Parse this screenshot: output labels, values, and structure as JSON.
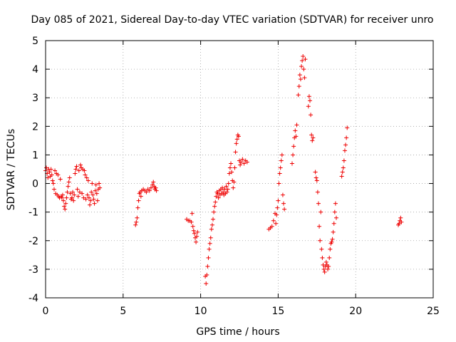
{
  "chart_data": {
    "type": "scatter",
    "title": "Day 085 of 2021, Sidereal Day-to-day VTEC variation (SDTVAR) for receiver unro",
    "xlabel": "GPS time / hours",
    "ylabel": "SDTVAR / TECUs",
    "xlim": [
      0,
      25
    ],
    "ylim": [
      -4,
      5
    ],
    "xticks": [
      "0",
      "5",
      "10",
      "15",
      "20",
      "25"
    ],
    "yticks": [
      "-4",
      "-3",
      "-2",
      "-1",
      "0",
      "1",
      "2",
      "3",
      "4",
      "5"
    ],
    "grid": true,
    "marker": "+",
    "color": "#ee0000",
    "series": [
      {
        "name": "SDTVAR",
        "points": [
          [
            0.0,
            0.45
          ],
          [
            0.05,
            0.55
          ],
          [
            0.1,
            0.35
          ],
          [
            0.15,
            0.2
          ],
          [
            0.2,
            0.5
          ],
          [
            0.25,
            0.4
          ],
          [
            0.3,
            0.25
          ],
          [
            0.35,
            0.5
          ],
          [
            0.4,
            0.3
          ],
          [
            0.45,
            0.1
          ],
          [
            0.5,
            0.0
          ],
          [
            0.55,
            -0.2
          ],
          [
            0.6,
            0.45
          ],
          [
            0.65,
            -0.35
          ],
          [
            0.7,
            0.35
          ],
          [
            0.75,
            -0.4
          ],
          [
            0.8,
            0.3
          ],
          [
            0.85,
            -0.45
          ],
          [
            0.9,
            -0.5
          ],
          [
            0.95,
            0.15
          ],
          [
            1.0,
            -0.45
          ],
          [
            1.05,
            -0.5
          ],
          [
            1.1,
            -0.4
          ],
          [
            1.15,
            -0.6
          ],
          [
            1.2,
            -0.8
          ],
          [
            1.25,
            -0.9
          ],
          [
            1.3,
            -0.7
          ],
          [
            1.35,
            -0.5
          ],
          [
            1.4,
            -0.3
          ],
          [
            1.45,
            -0.1
          ],
          [
            1.5,
            0.05
          ],
          [
            1.55,
            0.2
          ],
          [
            1.6,
            -0.35
          ],
          [
            1.65,
            -0.55
          ],
          [
            1.7,
            -0.5
          ],
          [
            1.75,
            -0.3
          ],
          [
            1.8,
            -0.6
          ],
          [
            1.85,
            -0.4
          ],
          [
            1.9,
            0.35
          ],
          [
            1.95,
            0.5
          ],
          [
            2.0,
            0.6
          ],
          [
            2.05,
            -0.2
          ],
          [
            2.1,
            -0.45
          ],
          [
            2.15,
            0.45
          ],
          [
            2.2,
            -0.3
          ],
          [
            2.25,
            0.65
          ],
          [
            2.3,
            0.55
          ],
          [
            2.35,
            -0.35
          ],
          [
            2.4,
            0.5
          ],
          [
            2.45,
            -0.5
          ],
          [
            2.5,
            0.45
          ],
          [
            2.55,
            0.3
          ],
          [
            2.6,
            -0.55
          ],
          [
            2.65,
            0.2
          ],
          [
            2.7,
            -0.4
          ],
          [
            2.75,
            0.1
          ],
          [
            2.8,
            -0.5
          ],
          [
            2.85,
            -0.75
          ],
          [
            2.9,
            -0.6
          ],
          [
            2.95,
            -0.3
          ],
          [
            3.0,
            0.0
          ],
          [
            3.05,
            -0.4
          ],
          [
            3.1,
            -0.55
          ],
          [
            3.15,
            -0.7
          ],
          [
            3.2,
            -0.25
          ],
          [
            3.25,
            -0.05
          ],
          [
            3.3,
            -0.35
          ],
          [
            3.35,
            -0.6
          ],
          [
            3.4,
            -0.2
          ],
          [
            3.45,
            0.0
          ],
          [
            3.5,
            -0.15
          ],
          [
            5.8,
            -1.45
          ],
          [
            5.85,
            -1.35
          ],
          [
            5.9,
            -1.2
          ],
          [
            5.95,
            -0.85
          ],
          [
            6.0,
            -0.6
          ],
          [
            6.05,
            -0.35
          ],
          [
            6.1,
            -0.3
          ],
          [
            6.15,
            -0.45
          ],
          [
            6.2,
            -0.25
          ],
          [
            6.3,
            -0.2
          ],
          [
            6.4,
            -0.25
          ],
          [
            6.5,
            -0.3
          ],
          [
            6.6,
            -0.2
          ],
          [
            6.7,
            -0.25
          ],
          [
            6.8,
            -0.15
          ],
          [
            6.9,
            -0.05
          ],
          [
            6.95,
            0.05
          ],
          [
            7.0,
            -0.1
          ],
          [
            7.05,
            -0.2
          ],
          [
            7.1,
            -0.15
          ],
          [
            7.15,
            -0.25
          ],
          [
            9.1,
            -1.25
          ],
          [
            9.2,
            -1.3
          ],
          [
            9.3,
            -1.3
          ],
          [
            9.4,
            -1.35
          ],
          [
            9.45,
            -1.05
          ],
          [
            9.5,
            -1.5
          ],
          [
            9.55,
            -1.65
          ],
          [
            9.6,
            -1.75
          ],
          [
            9.65,
            -1.9
          ],
          [
            9.7,
            -2.05
          ],
          [
            9.75,
            -1.85
          ],
          [
            9.8,
            -1.7
          ],
          [
            10.3,
            -3.25
          ],
          [
            10.35,
            -3.5
          ],
          [
            10.4,
            -3.2
          ],
          [
            10.45,
            -2.9
          ],
          [
            10.5,
            -2.6
          ],
          [
            10.55,
            -2.3
          ],
          [
            10.6,
            -2.1
          ],
          [
            10.65,
            -1.9
          ],
          [
            10.7,
            -1.6
          ],
          [
            10.75,
            -1.45
          ],
          [
            10.8,
            -1.25
          ],
          [
            10.85,
            -1.0
          ],
          [
            10.9,
            -0.8
          ],
          [
            10.95,
            -0.65
          ],
          [
            11.0,
            -0.45
          ],
          [
            11.05,
            -0.3
          ],
          [
            11.1,
            -0.35
          ],
          [
            11.15,
            -0.5
          ],
          [
            11.2,
            -0.25
          ],
          [
            11.25,
            -0.4
          ],
          [
            11.3,
            -0.2
          ],
          [
            11.35,
            -0.35
          ],
          [
            11.4,
            -0.15
          ],
          [
            11.45,
            -0.3
          ],
          [
            11.5,
            -0.4
          ],
          [
            11.55,
            -0.2
          ],
          [
            11.6,
            -0.35
          ],
          [
            11.65,
            -0.1
          ],
          [
            11.7,
            -0.3
          ],
          [
            11.75,
            -0.2
          ],
          [
            11.8,
            0.0
          ],
          [
            11.85,
            0.35
          ],
          [
            11.9,
            0.55
          ],
          [
            11.95,
            0.7
          ],
          [
            12.0,
            0.4
          ],
          [
            12.05,
            0.1
          ],
          [
            12.1,
            -0.15
          ],
          [
            12.15,
            0.05
          ],
          [
            12.2,
            0.55
          ],
          [
            12.25,
            1.1
          ],
          [
            12.3,
            1.4
          ],
          [
            12.35,
            1.55
          ],
          [
            12.4,
            1.7
          ],
          [
            12.45,
            1.65
          ],
          [
            12.5,
            0.8
          ],
          [
            12.55,
            0.65
          ],
          [
            12.6,
            0.75
          ],
          [
            12.7,
            0.85
          ],
          [
            12.8,
            0.7
          ],
          [
            12.9,
            0.8
          ],
          [
            13.0,
            0.75
          ],
          [
            14.4,
            -1.6
          ],
          [
            14.5,
            -1.55
          ],
          [
            14.6,
            -1.5
          ],
          [
            14.7,
            -1.3
          ],
          [
            14.8,
            -1.05
          ],
          [
            14.85,
            -1.4
          ],
          [
            14.9,
            -1.1
          ],
          [
            14.95,
            -0.85
          ],
          [
            15.0,
            -0.6
          ],
          [
            15.05,
            0.0
          ],
          [
            15.1,
            0.35
          ],
          [
            15.15,
            0.55
          ],
          [
            15.2,
            0.8
          ],
          [
            15.25,
            1.0
          ],
          [
            15.3,
            -0.4
          ],
          [
            15.35,
            -0.7
          ],
          [
            15.4,
            -0.9
          ],
          [
            15.9,
            0.7
          ],
          [
            15.95,
            1.0
          ],
          [
            16.0,
            1.3
          ],
          [
            16.05,
            1.6
          ],
          [
            16.1,
            1.85
          ],
          [
            16.15,
            1.65
          ],
          [
            16.2,
            2.05
          ],
          [
            16.3,
            3.1
          ],
          [
            16.35,
            3.4
          ],
          [
            16.4,
            3.8
          ],
          [
            16.45,
            3.65
          ],
          [
            16.5,
            4.1
          ],
          [
            16.55,
            4.3
          ],
          [
            16.6,
            4.45
          ],
          [
            16.65,
            4.0
          ],
          [
            16.7,
            3.7
          ],
          [
            16.75,
            4.35
          ],
          [
            16.95,
            2.7
          ],
          [
            17.0,
            3.05
          ],
          [
            17.05,
            2.9
          ],
          [
            17.1,
            2.4
          ],
          [
            17.15,
            1.7
          ],
          [
            17.2,
            1.5
          ],
          [
            17.25,
            1.6
          ],
          [
            17.4,
            0.4
          ],
          [
            17.45,
            0.2
          ],
          [
            17.5,
            0.1
          ],
          [
            17.55,
            -0.3
          ],
          [
            17.6,
            -0.7
          ],
          [
            17.65,
            -1.5
          ],
          [
            17.7,
            -2.0
          ],
          [
            17.75,
            -1.0
          ],
          [
            17.8,
            -2.3
          ],
          [
            17.85,
            -2.6
          ],
          [
            17.9,
            -2.85
          ],
          [
            17.95,
            -3.0
          ],
          [
            18.0,
            -3.1
          ],
          [
            18.05,
            -2.9
          ],
          [
            18.1,
            -2.75
          ],
          [
            18.15,
            -2.85
          ],
          [
            18.2,
            -3.0
          ],
          [
            18.25,
            -2.9
          ],
          [
            18.3,
            -2.6
          ],
          [
            18.35,
            -2.3
          ],
          [
            18.4,
            -2.1
          ],
          [
            18.45,
            -2.05
          ],
          [
            18.5,
            -1.95
          ],
          [
            18.55,
            -1.7
          ],
          [
            18.6,
            -1.4
          ],
          [
            18.65,
            -1.0
          ],
          [
            18.7,
            -0.7
          ],
          [
            18.75,
            -1.2
          ],
          [
            19.1,
            0.25
          ],
          [
            19.15,
            0.4
          ],
          [
            19.2,
            0.55
          ],
          [
            19.25,
            0.8
          ],
          [
            19.3,
            1.15
          ],
          [
            19.35,
            1.35
          ],
          [
            19.4,
            1.6
          ],
          [
            19.45,
            1.95
          ],
          [
            22.75,
            -1.45
          ],
          [
            22.8,
            -1.4
          ],
          [
            22.85,
            -1.3
          ],
          [
            22.9,
            -1.2
          ],
          [
            22.95,
            -1.35
          ]
        ]
      }
    ]
  }
}
